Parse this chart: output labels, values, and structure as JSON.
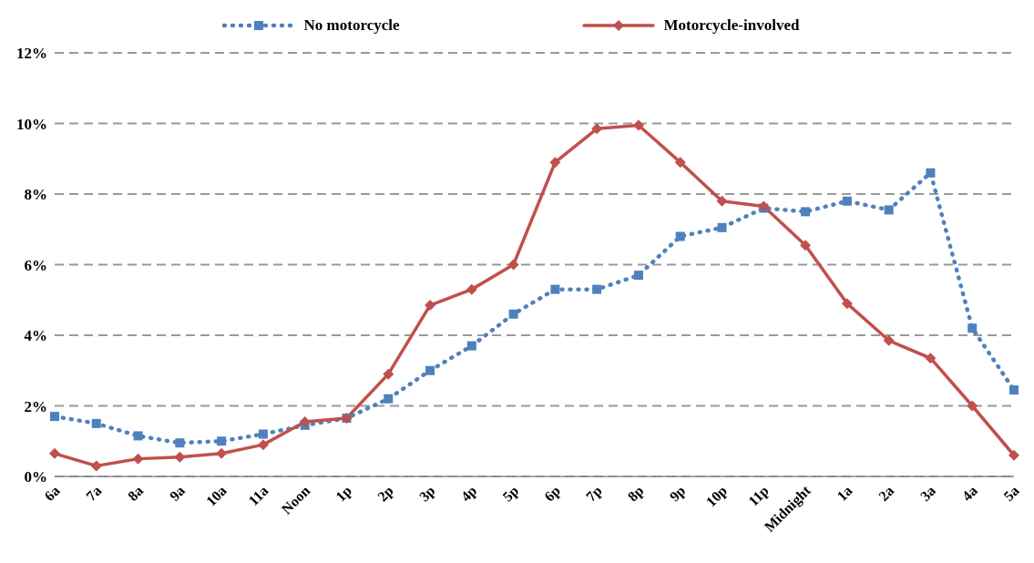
{
  "chart_data": {
    "type": "line",
    "categories": [
      "6a",
      "7a",
      "8a",
      "9a",
      "10a",
      "11a",
      "Noon",
      "1p",
      "2p",
      "3p",
      "4p",
      "5p",
      "6p",
      "7p",
      "8p",
      "9p",
      "10p",
      "11p",
      "Midnight",
      "1a",
      "2a",
      "3a",
      "4a",
      "5a"
    ],
    "series": [
      {
        "name": "No motorcycle",
        "color": "#4f81bd",
        "marker": "square",
        "line_style": "dotted",
        "values": [
          1.7,
          1.5,
          1.15,
          0.95,
          1.0,
          1.2,
          1.45,
          1.65,
          2.2,
          3.0,
          3.7,
          4.6,
          5.3,
          5.3,
          5.7,
          6.8,
          7.05,
          7.6,
          7.5,
          7.8,
          7.55,
          8.6,
          4.2,
          2.45
        ]
      },
      {
        "name": "Motorcycle-involved",
        "color": "#c0504d",
        "marker": "diamond",
        "line_style": "solid",
        "values": [
          0.65,
          0.3,
          0.5,
          0.55,
          0.65,
          0.9,
          1.55,
          1.65,
          2.9,
          4.85,
          5.3,
          6.0,
          8.9,
          9.85,
          9.95,
          8.9,
          7.8,
          7.65,
          6.55,
          4.9,
          3.85,
          3.35,
          2.0,
          0.6
        ]
      }
    ],
    "ylim": [
      0,
      12
    ],
    "yticks": [
      {
        "value": 0,
        "label": "0%"
      },
      {
        "value": 2,
        "label": "2%"
      },
      {
        "value": 4,
        "label": "4%"
      },
      {
        "value": 6,
        "label": "6%"
      },
      {
        "value": 8,
        "label": "8%"
      },
      {
        "value": 10,
        "label": "10%"
      },
      {
        "value": 12,
        "label": "12%"
      }
    ],
    "grid": "y",
    "legend": "top"
  }
}
